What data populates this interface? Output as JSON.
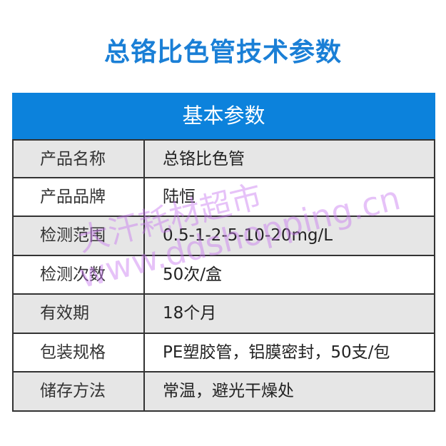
{
  "title": "总铬比色管技术参数",
  "table": {
    "header": "基本参数",
    "rows": [
      {
        "key": "产品名称",
        "value": "总铬比色管"
      },
      {
        "key": "产品品牌",
        "value": "陆恒"
      },
      {
        "key": "检测范围",
        "value": "0.5-1-2-5-10-20mg/L"
      },
      {
        "key": "检测次数",
        "value": "50次/盒"
      },
      {
        "key": "有效期",
        "value": "18个月"
      },
      {
        "key": "包装规格",
        "value": "PE塑胶管，铝膜密封，50支/包"
      },
      {
        "key": "储存方法",
        "value": "常温，避光干燥处"
      }
    ]
  },
  "watermark": {
    "name": "大汗耗材超市",
    "url": "www.ddshopping.cn"
  },
  "colors": {
    "accent": "#0c82dc",
    "title": "#1a7fd6",
    "row_alt": "#e6e6e6"
  }
}
